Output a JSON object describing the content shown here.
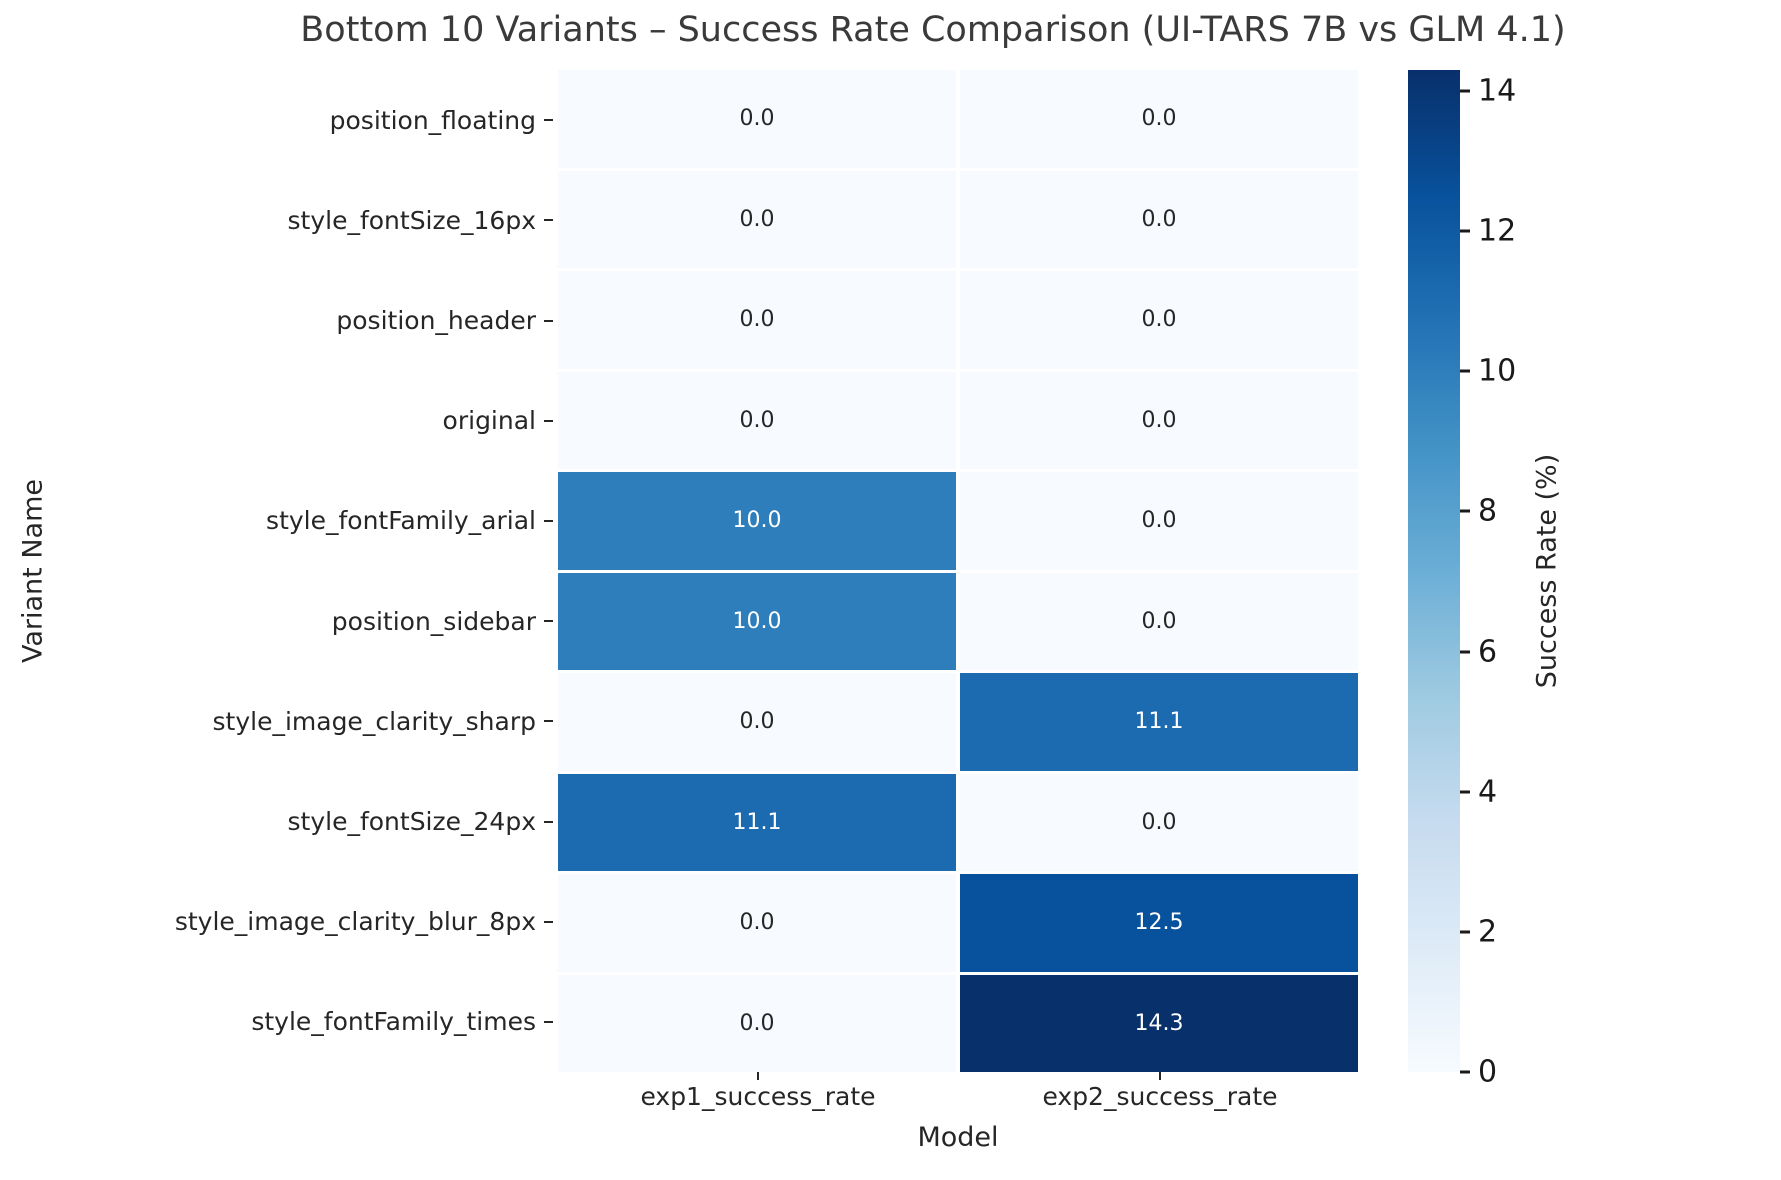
{
  "title": "Bottom 10 Variants – Success Rate Comparison (UI-TARS 7B vs GLM 4.1)",
  "chart_data": {
    "type": "heatmap",
    "title": "Bottom 10 Variants – Success Rate Comparison (UI-TARS 7B vs GLM 4.1)",
    "xlabel": "Model",
    "ylabel": "Variant Name",
    "columns": [
      "exp1_success_rate",
      "exp2_success_rate"
    ],
    "rows": [
      "position_floating",
      "style_fontSize_16px",
      "position_header",
      "original",
      "style_fontFamily_arial",
      "position_sidebar",
      "style_image_clarity_sharp",
      "style_fontSize_24px",
      "style_image_clarity_blur_8px",
      "style_fontFamily_times"
    ],
    "values": [
      [
        0.0,
        0.0
      ],
      [
        0.0,
        0.0
      ],
      [
        0.0,
        0.0
      ],
      [
        0.0,
        0.0
      ],
      [
        10.0,
        0.0
      ],
      [
        10.0,
        0.0
      ],
      [
        0.0,
        11.1
      ],
      [
        11.1,
        0.0
      ],
      [
        0.0,
        12.5
      ],
      [
        0.0,
        14.3
      ]
    ],
    "vmin": 0,
    "vmax": 14.3,
    "colormap": "Blues",
    "colormap_stops": [
      "#f7fbff",
      "#deebf7",
      "#c6dbef",
      "#9ecae1",
      "#6baed6",
      "#4292c6",
      "#2171b5",
      "#08519c",
      "#08306b"
    ],
    "annotation_colors": {
      "on_light": "#262626",
      "on_dark": "#ffffff"
    },
    "grid": false,
    "legend_position": "right-colorbar",
    "colorbar": {
      "label": "Success Rate (%)",
      "ticks": [
        0,
        2,
        4,
        6,
        8,
        10,
        12,
        14
      ]
    }
  }
}
